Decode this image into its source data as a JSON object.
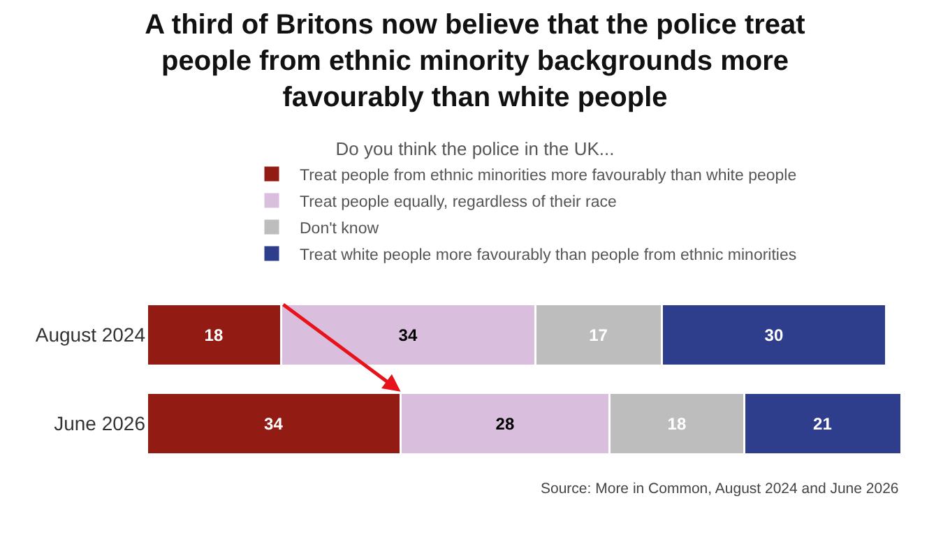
{
  "chart_data": {
    "type": "bar",
    "orientation": "horizontal",
    "stacked": true,
    "data_labels": true,
    "legend": "top",
    "tick_labels": "y",
    "title": "A third of Britons now believe that the police treat\npeople from ethnic minority backgrounds more\nfavourably than white people",
    "subtitle": "Do you think the police in the UK...",
    "categories": [
      "August 2024",
      "June 2026"
    ],
    "series": [
      {
        "name": "Treat people from ethnic minorities more favourably than white people",
        "color": "#921c14",
        "values": [
          18,
          34
        ]
      },
      {
        "name": "Treat people equally, regardless of their race",
        "color": "#d9bfdd",
        "values": [
          34,
          28
        ]
      },
      {
        "name": "Don't know",
        "color": "#bdbdbd",
        "values": [
          17,
          18
        ]
      },
      {
        "name": "Treat white people more favourably than people from ethnic minorities",
        "color": "#2e3d8c",
        "values": [
          30,
          21
        ]
      }
    ],
    "annotations": [
      "Source: More in Common, August 2024 and June 2026"
    ]
  }
}
